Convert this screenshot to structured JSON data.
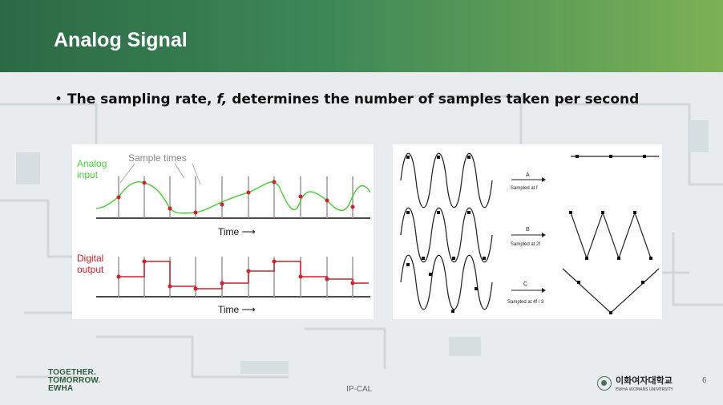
{
  "slide": {
    "title": "Analog Signal",
    "bullet": {
      "prefix": "The sampling rate, ",
      "variable": "f,",
      "suffix": " determines the number of samples taken per second"
    },
    "page_number": "6",
    "footer_center": "IP-CAL"
  },
  "left_figure": {
    "analog_label_1": "Analog",
    "analog_label_2": "input",
    "sample_times_label": "Sample times",
    "time_label_top": "Time ⟶",
    "digital_label_1": "Digital",
    "digital_label_2": "output",
    "time_label_bottom": "Time ⟶",
    "colors": {
      "analog": "#4bd03a",
      "digital": "#d0202a",
      "sample_line": "#999999",
      "label_gray": "#888888"
    }
  },
  "right_figure": {
    "rows": [
      {
        "letter": "A",
        "caption": "Sampled at f"
      },
      {
        "letter": "B",
        "caption": "Sampled at 2f"
      },
      {
        "letter": "C",
        "caption": "Sampled at 4f / 3"
      }
    ]
  },
  "footer": {
    "logo_line1": "TOGETHER.",
    "logo_line2": "TOMORROW.",
    "logo_line3": "EWHA",
    "university_ko": "이화여자대학교",
    "university_en": "EWHA WOMANS UNIVERSITY"
  },
  "colors": {
    "header_start": "#2b6a45",
    "header_end": "#7cb155"
  }
}
